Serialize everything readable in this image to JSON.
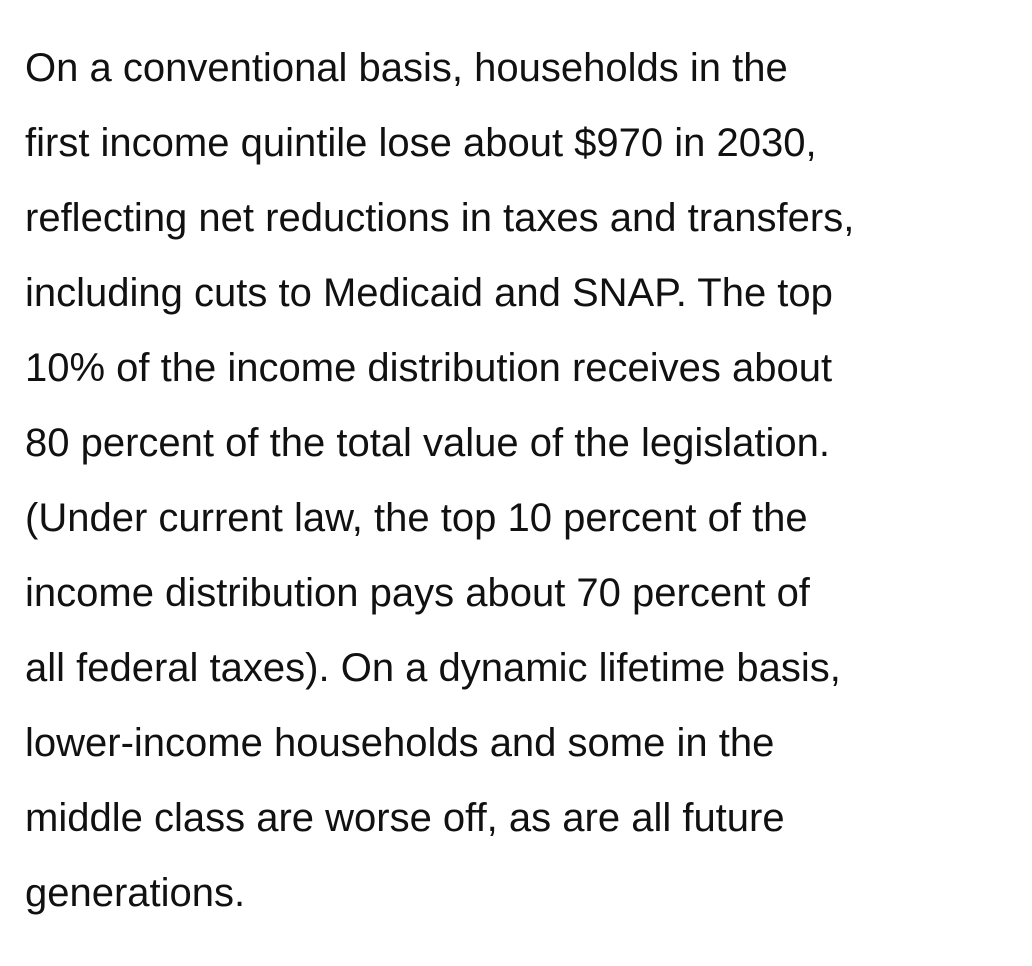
{
  "paragraph": {
    "lines": [
      "On a conventional basis, households in the",
      "first income quintile lose about $970 in 2030,",
      "reflecting net reductions in taxes and transfers,",
      "including cuts to Medicaid and SNAP. The top",
      "10% of the income distribution receives about",
      "80 percent of the total value of the legislation.",
      "(Under current law, the top 10 percent of the",
      "income distribution pays about 70 percent of",
      "all federal taxes). On a dynamic lifetime basis,",
      "lower-income households and some in the",
      "middle class are worse off, as are all future",
      "generations."
    ]
  }
}
